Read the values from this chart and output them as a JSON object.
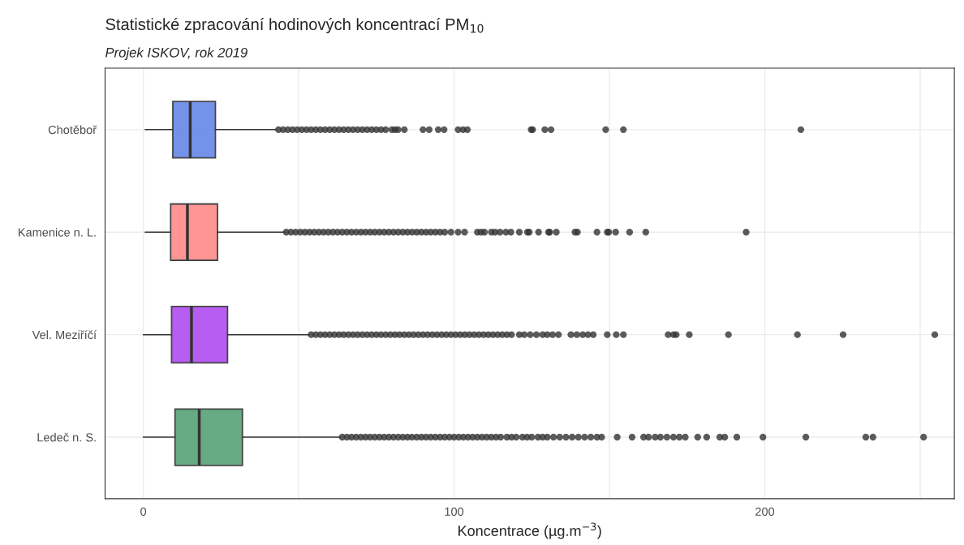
{
  "chart_data": {
    "type": "box",
    "orientation": "horizontal",
    "title": "Statistické zpracování hodinových koncentrací PM$_{10}$",
    "subtitle": "Projek ISKOV, rok 2019",
    "xlabel": "Koncentrace (µg.m$^{−3}$)",
    "categories": [
      "Chotěboř",
      "Kamenice n. L.",
      "Vel. Meziříčí",
      "Ledeč n. S."
    ],
    "colors": [
      "#6687e8",
      "#ff8a8a",
      "#b04cf0",
      "#56a277"
    ],
    "boxes": [
      {
        "low": 0.6,
        "q1": 9.5,
        "median": 15.1,
        "q3": 23.2,
        "high": 42.9,
        "outliers": [
          43.5,
          45,
          46.5,
          48,
          49.5,
          51,
          52.5,
          54,
          55.5,
          57,
          58.5,
          60,
          61.5,
          63,
          64.5,
          66,
          67.5,
          69,
          70.5,
          72,
          73.5,
          75,
          76.5,
          78,
          80,
          81,
          82,
          84,
          90,
          92,
          94.9,
          96.8,
          101.3,
          102.9,
          104.3,
          124.8,
          125.3,
          129.2,
          131.2,
          148.8,
          154.5,
          211.6
        ]
      },
      {
        "low": 0.6,
        "q1": 8.8,
        "median": 14.2,
        "q3": 23.9,
        "high": 45.7,
        "outliers": [
          46,
          47.5,
          49,
          50.5,
          52,
          53.5,
          55,
          56.5,
          58,
          59.5,
          61,
          62.5,
          64,
          65.5,
          67,
          68.5,
          70,
          71.5,
          73,
          74.5,
          76,
          77.5,
          79,
          80.5,
          82,
          83.5,
          85,
          86.5,
          88,
          89.5,
          91,
          92.5,
          94,
          95.5,
          97,
          99,
          101.3,
          103.4,
          107.5,
          108.7,
          109.8,
          112,
          113.2,
          114.8,
          116.7,
          118.3,
          121,
          123.6,
          124.2,
          127.2,
          130.4,
          130.8,
          132.9,
          138.9,
          139.7,
          146,
          149.3,
          149.8,
          152,
          156.5,
          161.7,
          194
        ]
      },
      {
        "low": 0,
        "q1": 9.1,
        "median": 15.5,
        "q3": 27.1,
        "high": 53.5,
        "outliers": [
          54,
          55.5,
          57,
          58.5,
          60,
          61.5,
          63,
          64.5,
          66,
          67.5,
          69,
          70.5,
          72,
          73.5,
          75,
          76.5,
          78,
          79.5,
          81,
          82.5,
          84,
          85.5,
          87,
          88.5,
          90,
          91.5,
          93,
          94.5,
          96,
          97.5,
          99,
          100.5,
          102,
          103.5,
          105,
          106.5,
          108,
          109.5,
          111,
          112.5,
          114,
          115.5,
          117,
          118.5,
          121,
          122.6,
          124.5,
          126.5,
          128.5,
          130,
          131.7,
          133.6,
          137.6,
          139.5,
          141.4,
          143.1,
          144.8,
          149.3,
          152.2,
          154.5,
          168.9,
          170.6,
          171.5,
          175.7,
          188.3,
          210.5,
          225.2,
          254.7
        ]
      },
      {
        "low": 0,
        "q1": 10.2,
        "median": 18,
        "q3": 31.9,
        "high": 63.5,
        "outliers": [
          64,
          65.5,
          67,
          68.5,
          70,
          71.5,
          73,
          74.5,
          76,
          77.5,
          79,
          80.5,
          82,
          83.5,
          85,
          86.5,
          88,
          89.5,
          91,
          92.5,
          94,
          95.5,
          97,
          98.5,
          100,
          101.5,
          103,
          104.5,
          106,
          107.5,
          109,
          110.5,
          112,
          113.5,
          115,
          117,
          118.5,
          120,
          122,
          123.5,
          125,
          127,
          128.5,
          130,
          132,
          134,
          136,
          138,
          140,
          142,
          144,
          146,
          147.5,
          152.5,
          157.3,
          161,
          162.6,
          164.7,
          166.4,
          168.5,
          170.6,
          172.5,
          174.4,
          178.4,
          181.3,
          185.5,
          187.1,
          191,
          199.4,
          213.2,
          232.5,
          234.8,
          251.1
        ]
      }
    ],
    "xlim": [
      -12.3,
      261
    ],
    "xticks": [
      {
        "value": 0,
        "label": "0"
      },
      {
        "value": 50,
        "label": null
      },
      {
        "value": 100,
        "label": "100"
      },
      {
        "value": 150,
        "label": null
      },
      {
        "value": 200,
        "label": "200"
      },
      {
        "value": 250,
        "label": null
      }
    ],
    "grid": true
  }
}
